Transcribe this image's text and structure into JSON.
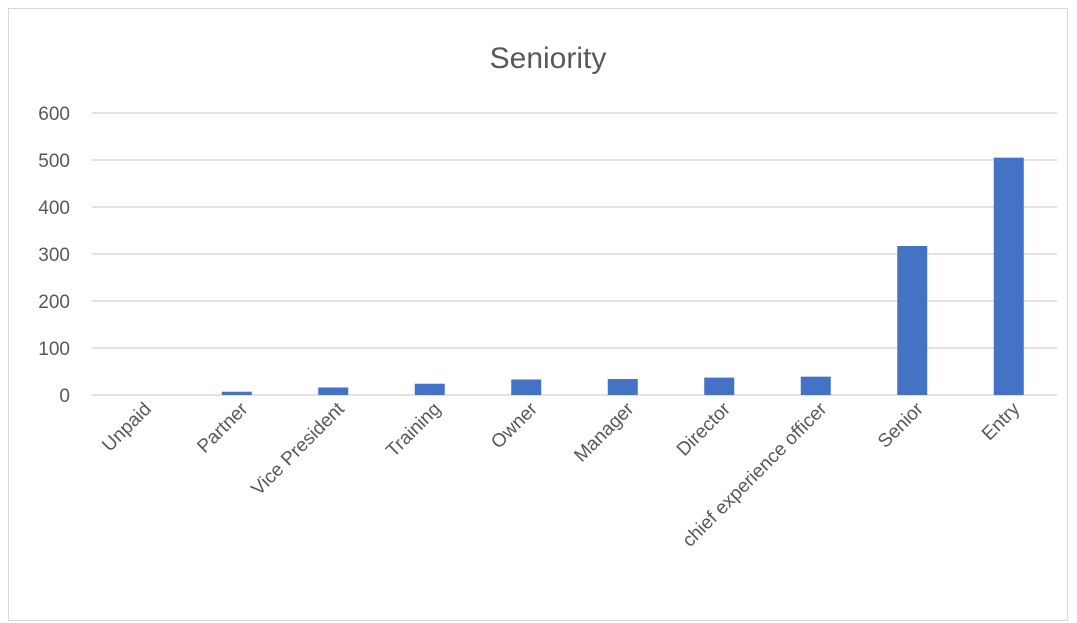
{
  "chart_data": {
    "type": "bar",
    "title": "Seniority",
    "categories": [
      "Unpaid",
      "Partner",
      "Vice President",
      "Training",
      "Owner",
      "Manager",
      "Director",
      "chief experience officer",
      "Senior",
      "Entry"
    ],
    "values": [
      0,
      7,
      16,
      24,
      33,
      34,
      37,
      39,
      317,
      505
    ],
    "ylim": [
      0,
      600
    ],
    "yticks": [
      0,
      100,
      200,
      300,
      400,
      500,
      600
    ],
    "xlabel": "",
    "ylabel": "",
    "grid": true,
    "legend": "none",
    "bar_color": "#4472c4"
  }
}
